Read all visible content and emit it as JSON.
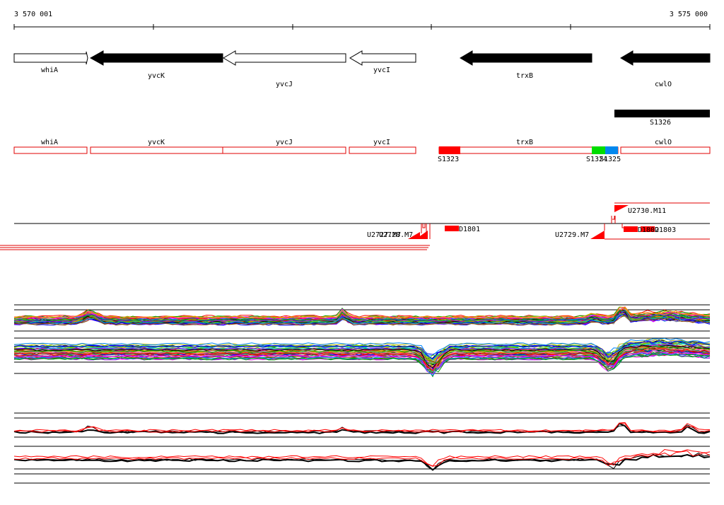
{
  "ruler": {
    "start_label": "3 570 001",
    "end_label": "3 575 000",
    "start_coord": 3570001,
    "end_coord": 3575000
  },
  "genes": [
    {
      "name": "whiA",
      "strand": "+",
      "filled": false
    },
    {
      "name": "yvcK",
      "strand": "-",
      "filled": true
    },
    {
      "name": "yvcJ",
      "strand": "-",
      "filled": false
    },
    {
      "name": "yvcI",
      "strand": "-",
      "filled": false
    },
    {
      "name": "trxB",
      "strand": "-",
      "filled": true
    },
    {
      "name": "cwlO",
      "strand": "-",
      "filled": true
    }
  ],
  "srna_track": {
    "label": "S1326"
  },
  "annotation_track": {
    "genes": [
      "whiA",
      "yvcK",
      "yvcJ",
      "yvcI",
      "trxB",
      "cwlO"
    ],
    "segments": [
      {
        "label": "S1323",
        "color": "#ff0000"
      },
      {
        "label": "S1324",
        "color": "#00dd00"
      },
      {
        "label": "S1325",
        "color": "#0088ee"
      }
    ]
  },
  "transcription_track": {
    "labels": {
      "u2727": "U2727.M7",
      "u2728": "U2728.M7",
      "d1801": "D1801",
      "u2729": "U2729.M7",
      "u2730": "U2730.M11",
      "d1802": "D1802",
      "d1803": "D1803"
    }
  },
  "colors": {
    "accent": "#ff0000",
    "gene_fill": "#000000",
    "segment_green": "#00dd00",
    "segment_blue": "#0088ee"
  }
}
